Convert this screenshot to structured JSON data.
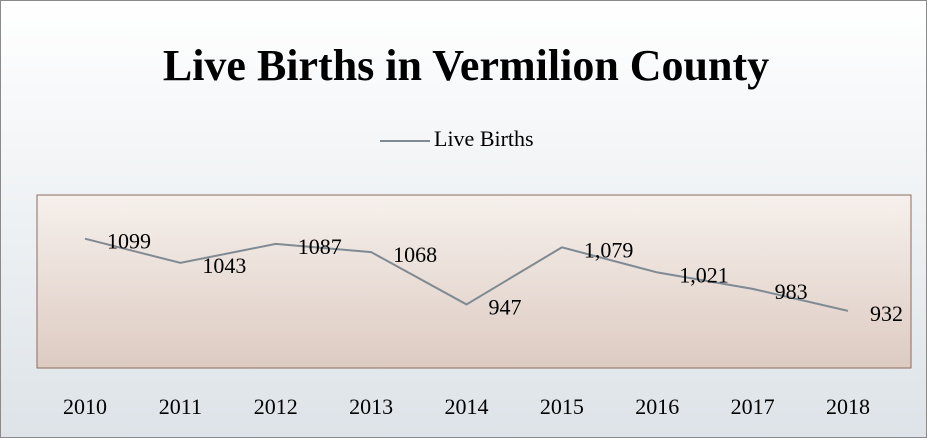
{
  "chart_data": {
    "type": "line",
    "title": "Live Births in Vermilion County",
    "categories": [
      "2010",
      "2011",
      "2012",
      "2013",
      "2014",
      "2015",
      "2016",
      "2017",
      "2018"
    ],
    "series": [
      {
        "name": "Live Births",
        "color": "#7f8a93",
        "values": [
          1099,
          1043,
          1087,
          1068,
          947,
          1079,
          1021,
          983,
          932
        ],
        "value_labels": [
          "1099",
          "1043",
          "1087",
          "1068",
          "947",
          "1,079",
          "1,021",
          "983",
          "932"
        ]
      }
    ],
    "ylim": [
      800,
      1200
    ]
  }
}
